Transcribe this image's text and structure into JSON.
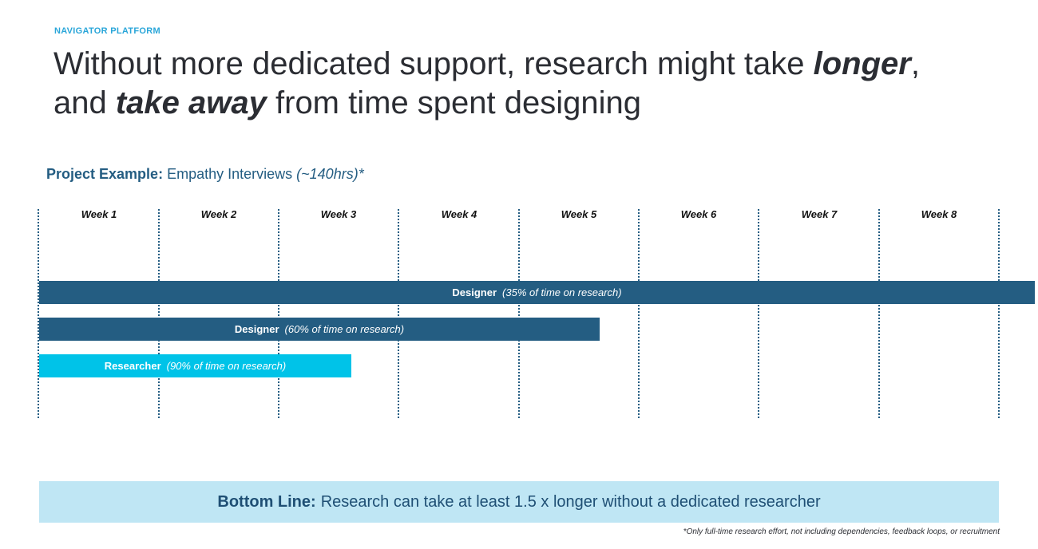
{
  "header": {
    "eyebrow": "NAVIGATOR PLATFORM",
    "headline_part1": "Without more dedicated support, research might take ",
    "headline_emph1": "longer",
    "headline_part2": ",",
    "headline_part3": "and ",
    "headline_emph2": "take away",
    "headline_part4": " from time spent designing"
  },
  "project": {
    "label": "Project Example:",
    "name": "Empathy Interviews",
    "note": "(~140hrs)*"
  },
  "timeline": {
    "weeks": [
      "Week 1",
      "Week 2",
      "Week 3",
      "Week 4",
      "Week 5",
      "Week 6",
      "Week 7",
      "Week 8"
    ],
    "bars": [
      {
        "role": "Designer",
        "pct_label": "(35% of time on research)",
        "percent_time": 35,
        "duration_weeks": 8.3,
        "color": "#245d82"
      },
      {
        "role": "Designer",
        "pct_label": "(60% of time on research)",
        "percent_time": 60,
        "duration_weeks": 4.67,
        "color": "#245d82"
      },
      {
        "role": "Researcher",
        "pct_label": "(90% of time on research)",
        "percent_time": 90,
        "duration_weeks": 2.6,
        "color": "#00c3e8"
      }
    ]
  },
  "bottom_line": {
    "label": "Bottom Line:",
    "text": "Research can take at least 1.5 x longer without a dedicated researcher",
    "bg_color": "#bfe6f4"
  },
  "footnote": "*Only full-time research effort, not including dependencies, feedback loops, or recruitment",
  "colors": {
    "accent": "#2aa6d9",
    "primary": "#245d82",
    "researcher": "#00c3e8"
  }
}
